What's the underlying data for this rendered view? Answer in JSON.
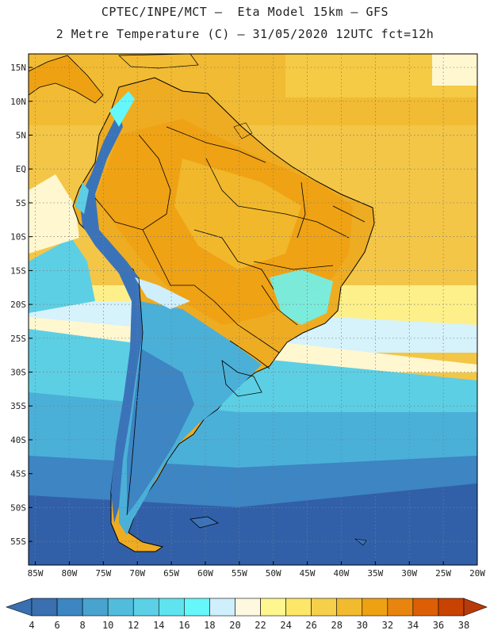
{
  "header": {
    "line1": "CPTEC/INPE/MCT –  Eta Model 15km – GFS",
    "line2": "2 Metre Temperature (C) – 31/05/2020 12UTC fct=12h"
  },
  "map": {
    "lon_min": -86,
    "lon_max": -20,
    "lat_min": -58.5,
    "lat_max": 17,
    "lat_ticks": [
      {
        "v": 15,
        "label": "15N"
      },
      {
        "v": 10,
        "label": "10N"
      },
      {
        "v": 5,
        "label": "5N"
      },
      {
        "v": 0,
        "label": "EQ"
      },
      {
        "v": -5,
        "label": "5S"
      },
      {
        "v": -10,
        "label": "10S"
      },
      {
        "v": -15,
        "label": "15S"
      },
      {
        "v": -20,
        "label": "20S"
      },
      {
        "v": -25,
        "label": "25S"
      },
      {
        "v": -30,
        "label": "30S"
      },
      {
        "v": -35,
        "label": "35S"
      },
      {
        "v": -40,
        "label": "40S"
      },
      {
        "v": -45,
        "label": "45S"
      },
      {
        "v": -50,
        "label": "50S"
      },
      {
        "v": -55,
        "label": "55S"
      }
    ],
    "lon_ticks": [
      {
        "v": -85,
        "label": "85W"
      },
      {
        "v": -80,
        "label": "80W"
      },
      {
        "v": -75,
        "label": "75W"
      },
      {
        "v": -70,
        "label": "70W"
      },
      {
        "v": -65,
        "label": "65W"
      },
      {
        "v": -60,
        "label": "60W"
      },
      {
        "v": -55,
        "label": "55W"
      },
      {
        "v": -50,
        "label": "50W"
      },
      {
        "v": -45,
        "label": "45W"
      },
      {
        "v": -40,
        "label": "40W"
      },
      {
        "v": -35,
        "label": "35W"
      },
      {
        "v": -30,
        "label": "30W"
      },
      {
        "v": -25,
        "label": "25W"
      },
      {
        "v": -20,
        "label": "20W"
      }
    ]
  },
  "colorbar": {
    "labels": [
      "4",
      "6",
      "8",
      "10",
      "12",
      "14",
      "16",
      "18",
      "20",
      "22",
      "24",
      "26",
      "28",
      "30",
      "32",
      "34",
      "36",
      "38"
    ],
    "colors": {
      "below": "#3a6fb0",
      "bins": [
        "#3a6fb0",
        "#3c86c2",
        "#48a3cf",
        "#52bcdc",
        "#5bd0e6",
        "#5fe3ef",
        "#66f7fb",
        "#cfeffd",
        "#fff8e0",
        "#fef68e",
        "#fde769",
        "#f7d04b",
        "#f2ba2e",
        "#eea113",
        "#e8850e",
        "#dc5f05",
        "#c84201"
      ],
      "above": "#b83a0a"
    }
  },
  "palette": {
    "deep_ocean": "#3260a8",
    "cold_ocean": "#3d85c3",
    "cool_ocean": "#4bb0d8",
    "mild_ocean": "#5ccfe4",
    "warm_ocean": "#d6f2fb",
    "subtropic": "#fdf08a",
    "tropic": "#f3c648",
    "hot": "#eeac22",
    "andes": "#3b73b9",
    "outline": "#000000"
  }
}
